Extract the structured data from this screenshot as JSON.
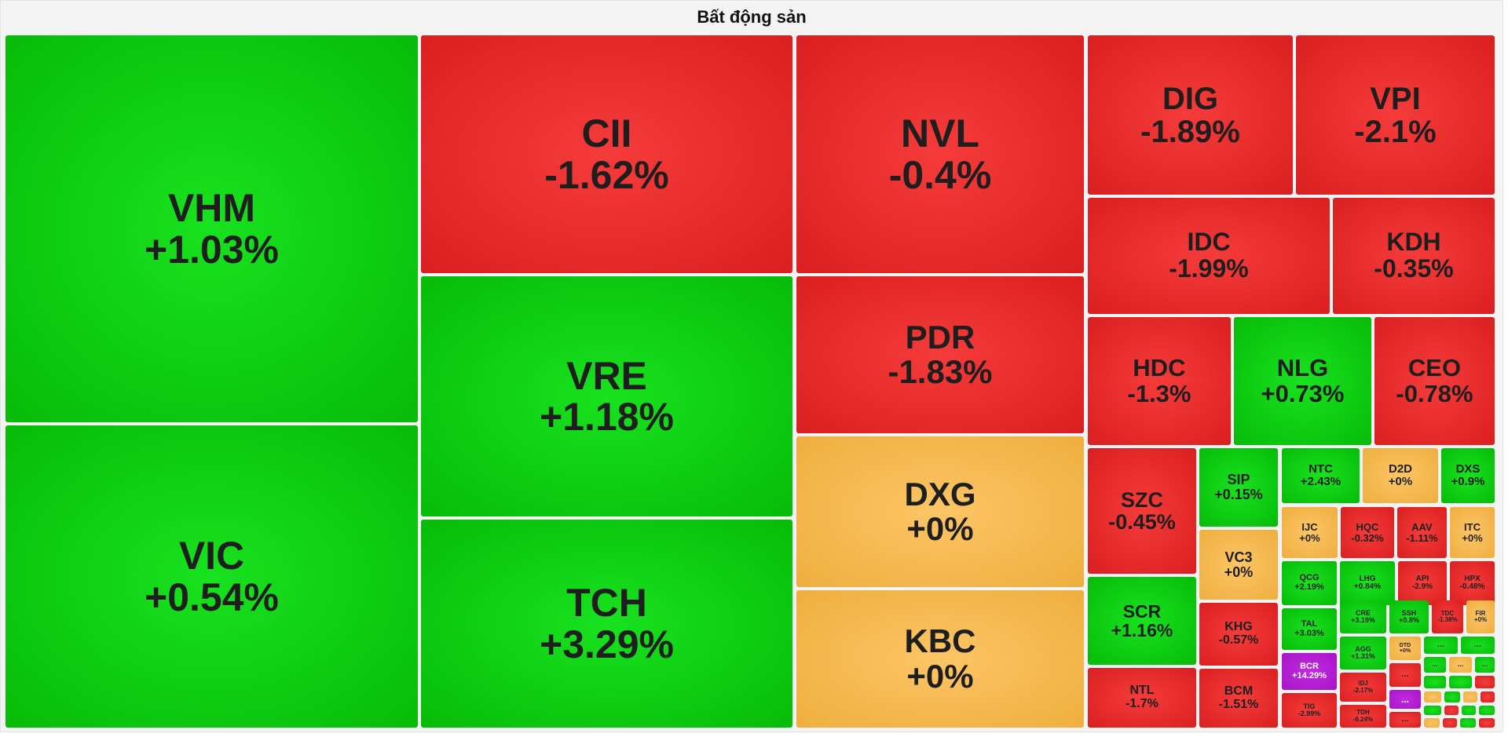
{
  "title": "Bất động sản",
  "colors": {
    "up": "#10c810",
    "down": "#e62c2c",
    "flat": "#f5b94c",
    "ceiling": "#b01fd1",
    "border": "#ffffff"
  },
  "chart_data": {
    "type": "treemap",
    "title": "Bất động sản",
    "items": [
      {
        "symbol": "VHM",
        "change": "+1.03%",
        "value": 1.03,
        "status": "up"
      },
      {
        "symbol": "VIC",
        "change": "+0.54%",
        "value": 0.54,
        "status": "up"
      },
      {
        "symbol": "CII",
        "change": "-1.62%",
        "value": -1.62,
        "status": "down"
      },
      {
        "symbol": "VRE",
        "change": "+1.18%",
        "value": 1.18,
        "status": "up"
      },
      {
        "symbol": "TCH",
        "change": "+3.29%",
        "value": 3.29,
        "status": "up"
      },
      {
        "symbol": "NVL",
        "change": "-0.4%",
        "value": -0.4,
        "status": "down"
      },
      {
        "symbol": "PDR",
        "change": "-1.83%",
        "value": -1.83,
        "status": "down"
      },
      {
        "symbol": "DXG",
        "change": "+0%",
        "value": 0,
        "status": "flat"
      },
      {
        "symbol": "KBC",
        "change": "+0%",
        "value": 0,
        "status": "flat"
      },
      {
        "symbol": "DIG",
        "change": "-1.89%",
        "value": -1.89,
        "status": "down"
      },
      {
        "symbol": "VPI",
        "change": "-2.1%",
        "value": -2.1,
        "status": "down"
      },
      {
        "symbol": "IDC",
        "change": "-1.99%",
        "value": -1.99,
        "status": "down"
      },
      {
        "symbol": "KDH",
        "change": "-0.35%",
        "value": -0.35,
        "status": "down"
      },
      {
        "symbol": "HDC",
        "change": "-1.3%",
        "value": -1.3,
        "status": "down"
      },
      {
        "symbol": "NLG",
        "change": "+0.73%",
        "value": 0.73,
        "status": "up"
      },
      {
        "symbol": "CEO",
        "change": "-0.78%",
        "value": -0.78,
        "status": "down"
      },
      {
        "symbol": "SZC",
        "change": "-0.45%",
        "value": -0.45,
        "status": "down"
      },
      {
        "symbol": "SCR",
        "change": "+1.16%",
        "value": 1.16,
        "status": "up"
      },
      {
        "symbol": "NTL",
        "change": "-1.7%",
        "value": -1.7,
        "status": "down"
      },
      {
        "symbol": "SIP",
        "change": "+0.15%",
        "value": 0.15,
        "status": "up"
      },
      {
        "symbol": "VC3",
        "change": "+0%",
        "value": 0,
        "status": "flat"
      },
      {
        "symbol": "KHG",
        "change": "-0.57%",
        "value": -0.57,
        "status": "down"
      },
      {
        "symbol": "BCM",
        "change": "-1.51%",
        "value": -1.51,
        "status": "down"
      },
      {
        "symbol": "NTC",
        "change": "+2.43%",
        "value": 2.43,
        "status": "up"
      },
      {
        "symbol": "D2D",
        "change": "+0%",
        "value": 0,
        "status": "flat"
      },
      {
        "symbol": "DXS",
        "change": "+0.9%",
        "value": 0.9,
        "status": "up"
      },
      {
        "symbol": "IJC",
        "change": "+0%",
        "value": 0,
        "status": "flat"
      },
      {
        "symbol": "HQC",
        "change": "-0.32%",
        "value": -0.32,
        "status": "down"
      },
      {
        "symbol": "AAV",
        "change": "-1.11%",
        "value": -1.11,
        "status": "down"
      },
      {
        "symbol": "ITC",
        "change": "+0%",
        "value": 0,
        "status": "flat"
      },
      {
        "symbol": "QCG",
        "change": "+2.19%",
        "value": 2.19,
        "status": "up"
      },
      {
        "symbol": "LHG",
        "change": "+0.84%",
        "value": 0.84,
        "status": "up"
      },
      {
        "symbol": "API",
        "change": "-2.9%",
        "value": -2.9,
        "status": "down"
      },
      {
        "symbol": "HPX",
        "change": "-0.48%",
        "value": -0.48,
        "status": "down"
      },
      {
        "symbol": "TAL",
        "change": "+3.03%",
        "value": 3.03,
        "status": "up"
      },
      {
        "symbol": "CRE",
        "change": "+3.19%",
        "value": 3.19,
        "status": "up"
      },
      {
        "symbol": "SSH",
        "change": "+0.8%",
        "value": 0.8,
        "status": "up"
      },
      {
        "symbol": "TDC",
        "change": "-1.38%",
        "value": -1.38,
        "status": "down"
      },
      {
        "symbol": "FIR",
        "change": "+0%",
        "value": 0,
        "status": "flat"
      },
      {
        "symbol": "BCR",
        "change": "+14.29%",
        "value": 14.29,
        "status": "ceiling"
      },
      {
        "symbol": "AGG",
        "change": "+1.31%",
        "value": 1.31,
        "status": "up"
      },
      {
        "symbol": "DTD",
        "change": "+0%",
        "value": 0,
        "status": "flat"
      },
      {
        "symbol": "IDJ",
        "change": "-2.17%",
        "value": -2.17,
        "status": "down"
      },
      {
        "symbol": "TIG",
        "change": "-2.99%",
        "value": -2.99,
        "status": "down"
      },
      {
        "symbol": "TDH",
        "change": "-6.24%",
        "value": -6.24,
        "status": "down"
      }
    ],
    "small_tiles": [
      {
        "label": "...",
        "status": "up"
      },
      {
        "label": "...",
        "status": "up"
      },
      {
        "label": "...",
        "status": "down"
      },
      {
        "label": "...",
        "status": "up"
      },
      {
        "label": "...",
        "status": "flat"
      },
      {
        "label": "...",
        "status": "up"
      },
      {
        "label": "...",
        "status": "ceiling"
      },
      {
        "label": "...",
        "status": "down"
      },
      {
        "label": "",
        "status": "up"
      },
      {
        "label": "",
        "status": "up"
      },
      {
        "label": "",
        "status": "down"
      },
      {
        "label": "",
        "status": "flat"
      },
      {
        "label": "",
        "status": "up"
      },
      {
        "label": "",
        "status": "flat"
      },
      {
        "label": "",
        "status": "down"
      },
      {
        "label": "",
        "status": "up"
      },
      {
        "label": "",
        "status": "down"
      },
      {
        "label": "",
        "status": "up"
      },
      {
        "label": "",
        "status": "up"
      },
      {
        "label": "",
        "status": "flat"
      },
      {
        "label": "",
        "status": "down"
      },
      {
        "label": "",
        "status": "up"
      },
      {
        "label": "",
        "status": "down"
      }
    ]
  }
}
